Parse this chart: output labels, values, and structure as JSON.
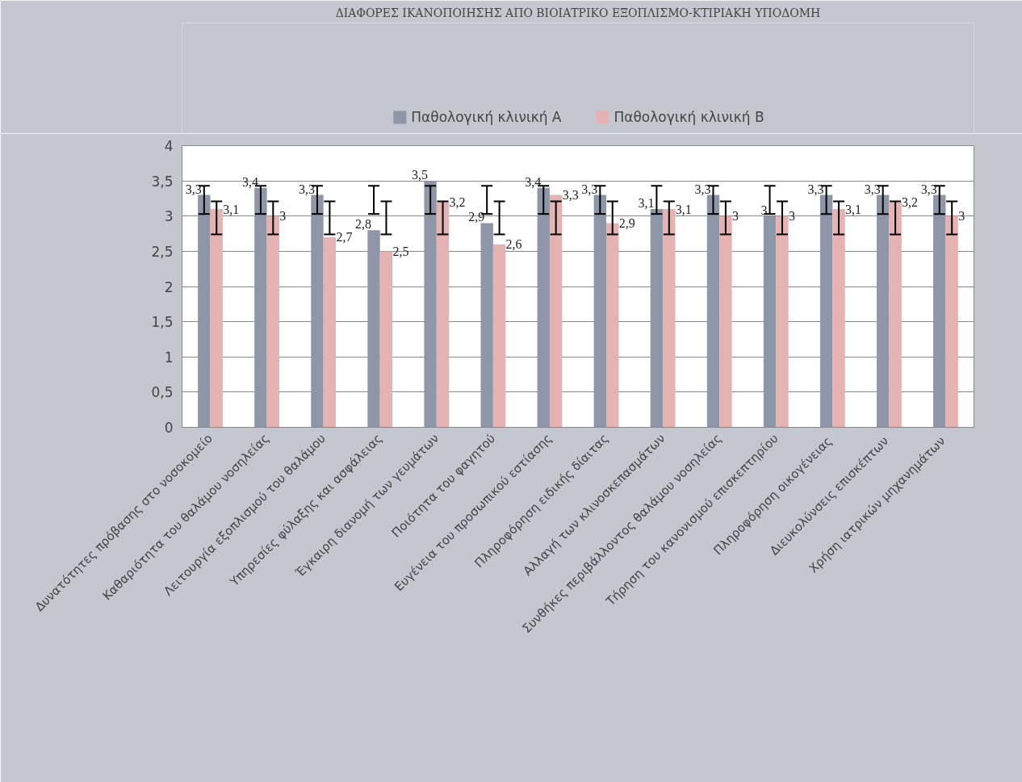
{
  "chart_data": {
    "type": "bar",
    "title": "ΔΙΑΦΟΡΕΣ ΙΚΑΝΟΠΟΙΗΣΗΣ ΑΠΟ ΒΙΟΙΑΤΡΙΚΟ ΕΞΟΠΛΙΣΜΟ-ΚΤΙΡΙΑΚΗ ΥΠΟΔΟΜΗ",
    "categories": [
      "Δυνατότητες πρόβασης στο νοσοκομείο",
      "Καθαριότητα του θαλάμου νοσηλείας",
      "Λειτουργία εξοπλισμού του θαλάμου",
      "Υπηρεσίες φύλαξης και ασφάλειας",
      "Έγκαιρη διανομή των γευμάτων",
      "Ποιότητα του φαγητού",
      "Ευγένεια του προσωπικού εστίασης",
      "Πληροφόρηση ειδικής δίαιτας",
      "Αλλαγή των κλινοσκεπασμάτων",
      "Συνθήκες περιβάλλοντος θαλάμου νοσηλείας",
      "Τήρηση του κανονισμού επισκεπτηρίου",
      "Πληροφόρηση  οικογένειας",
      "Διευκολύνσεις  επισκέπτων",
      "Χρήση  ιατρικών μηχανημάτων"
    ],
    "series": [
      {
        "name": "Παθολογική κλινική Α",
        "color": "#8e96a8",
        "values": [
          3.3,
          3.4,
          3.3,
          2.8,
          3.5,
          2.9,
          3.4,
          3.3,
          3.1,
          3.3,
          3,
          3.3,
          3.3,
          3.3
        ],
        "value_labels": [
          "3,3",
          "3,4",
          "3,3",
          "2,8",
          "3,5",
          "2,9",
          "3,4",
          "3,3",
          "3,1",
          "3,3",
          "3",
          "3,3",
          "3,3",
          "3,3"
        ],
        "errors": [
          [
            3.03,
            3.43
          ],
          [
            3.03,
            3.43
          ],
          [
            3.03,
            3.43
          ],
          [
            3.03,
            3.43
          ],
          [
            3.03,
            3.43
          ],
          [
            3.03,
            3.43
          ],
          [
            3.03,
            3.43
          ],
          [
            3.03,
            3.43
          ],
          [
            3.03,
            3.43
          ],
          [
            3.03,
            3.43
          ],
          [
            3.03,
            3.43
          ],
          [
            3.03,
            3.43
          ],
          [
            3.03,
            3.43
          ],
          [
            3.03,
            3.43
          ]
        ]
      },
      {
        "name": "Παθολογική κλινική Β",
        "color": "#e6b3b3",
        "values": [
          3.1,
          3,
          2.7,
          2.5,
          3.2,
          2.6,
          3.3,
          2.9,
          3.1,
          3,
          3,
          3.1,
          3.2,
          3
        ],
        "value_labels": [
          "3,1",
          "3",
          "2,7",
          "2,5",
          "3,2",
          "2,6",
          "3,3",
          "2,9",
          "3,1",
          "3",
          "3",
          "3,1",
          "3,2",
          "3"
        ],
        "errors": [
          [
            2.74,
            3.21
          ],
          [
            2.74,
            3.21
          ],
          [
            2.74,
            3.21
          ],
          [
            2.74,
            3.21
          ],
          [
            2.74,
            3.21
          ],
          [
            2.74,
            3.21
          ],
          [
            2.74,
            3.21
          ],
          [
            2.74,
            3.21
          ],
          [
            2.74,
            3.21
          ],
          [
            2.74,
            3.21
          ],
          [
            2.74,
            3.21
          ],
          [
            2.74,
            3.21
          ],
          [
            2.74,
            3.21
          ],
          [
            2.74,
            3.21
          ]
        ]
      }
    ],
    "ylim": [
      0,
      4
    ],
    "yticks": [
      0,
      {
        "value": 0.5,
        "label": "0,5"
      },
      1,
      {
        "value": 1.5,
        "label": "1,5"
      },
      2,
      {
        "value": 2.5,
        "label": "2,5"
      },
      3,
      {
        "value": 3.5,
        "label": "3,5"
      },
      4
    ],
    "grid": "y",
    "legend": "top"
  }
}
